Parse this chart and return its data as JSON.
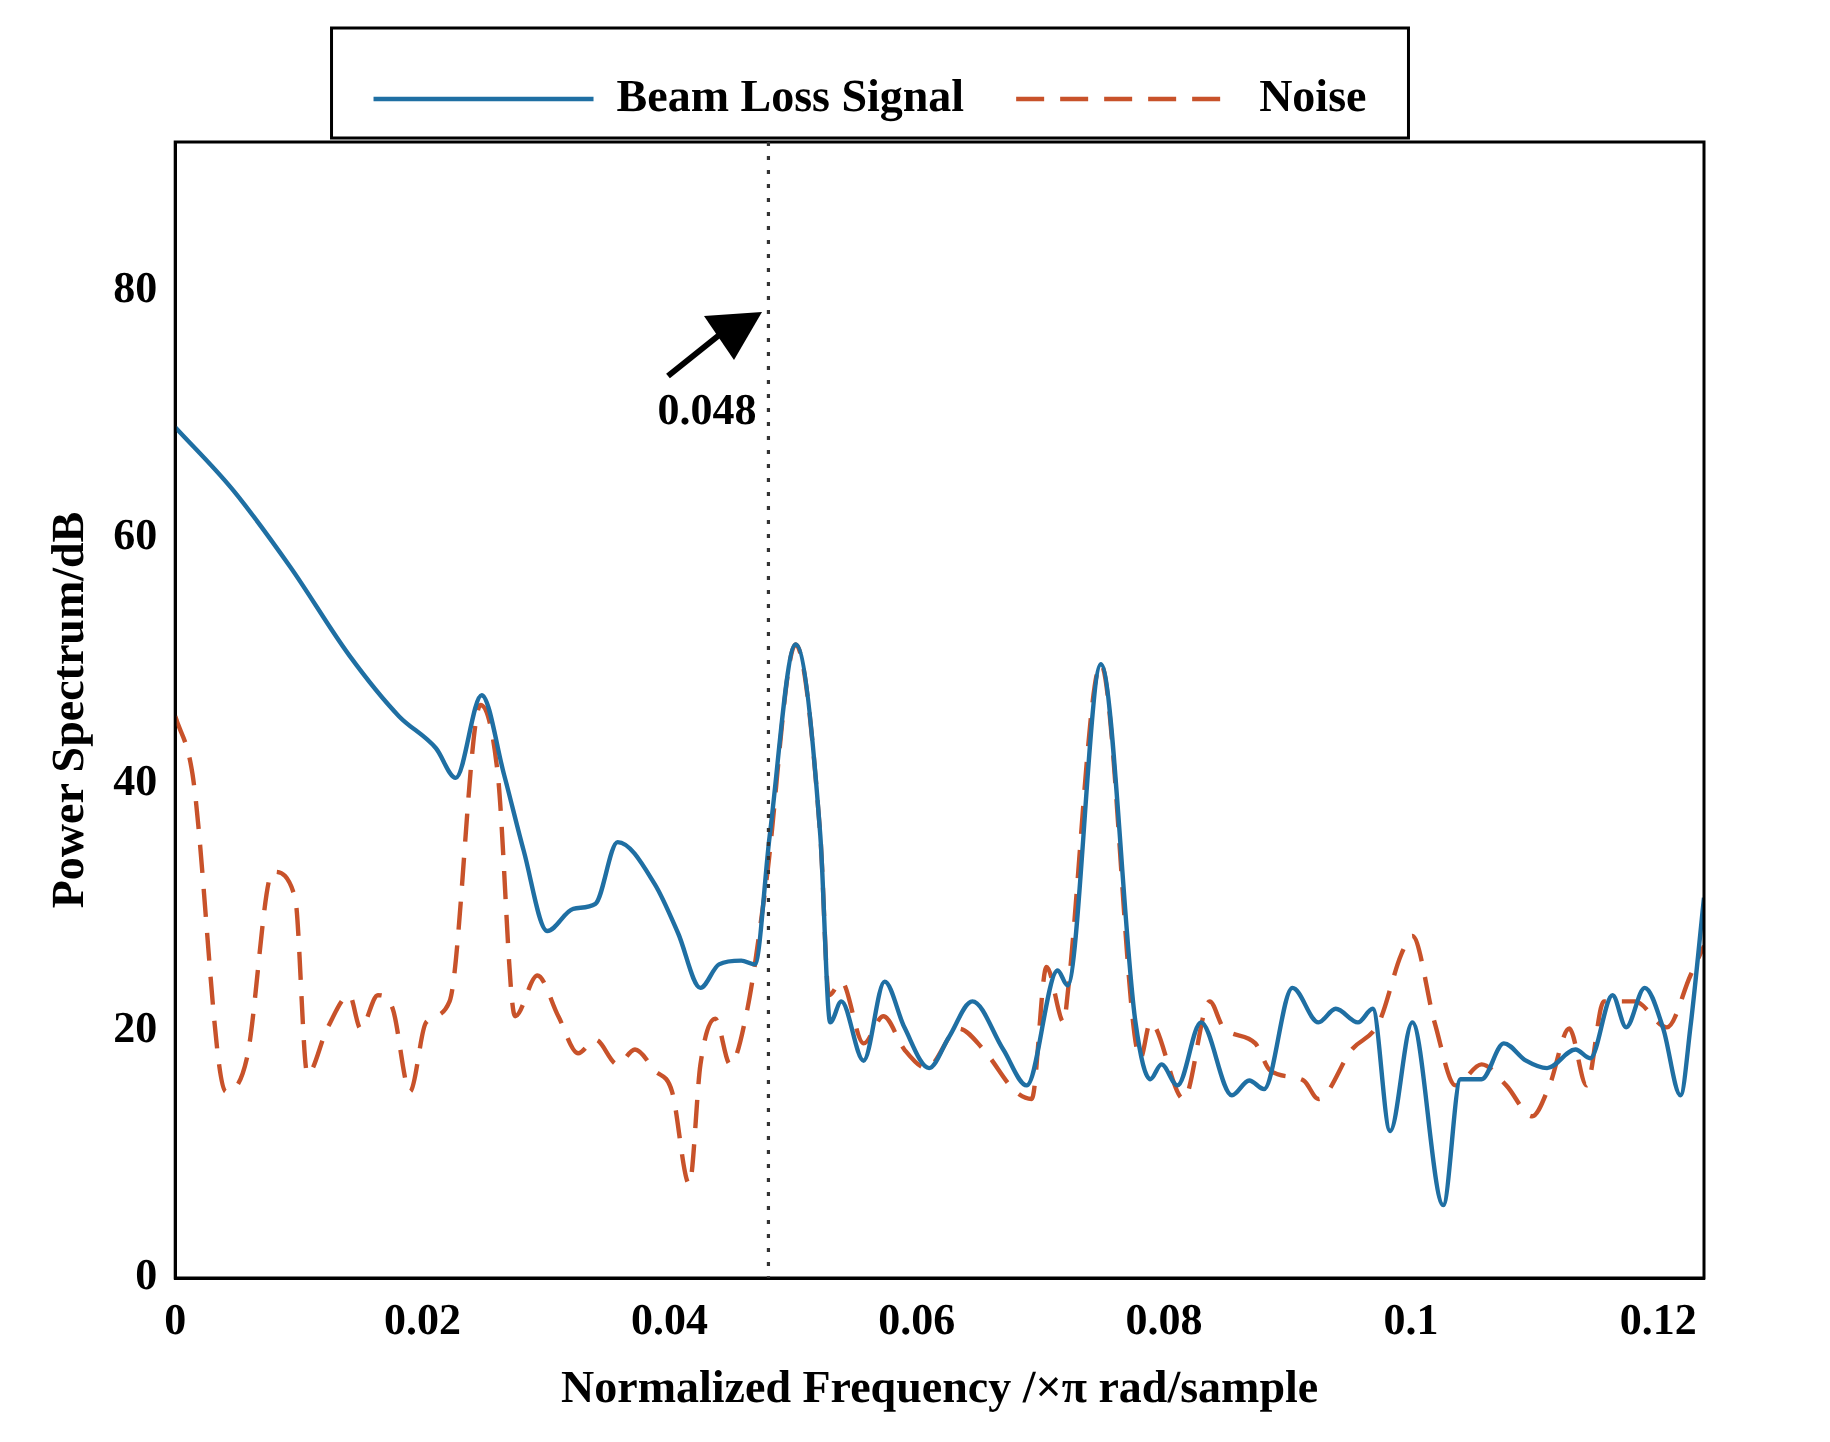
{
  "chart_data": {
    "type": "line",
    "xlabel": "Normalized Frequency /×π rad/sample",
    "ylabel": "Power Spectrum/dB",
    "xlim": [
      0,
      0.1237
    ],
    "xticks": [
      0,
      0.02,
      0.04,
      0.06,
      0.08,
      0.1,
      0.12
    ],
    "ylim": [
      0,
      92
    ],
    "yticks": [
      0,
      20,
      40,
      60,
      80
    ],
    "grid": false,
    "legend": "top",
    "marker": "none",
    "ref_lines": [
      {
        "axis": "x",
        "value": 0.048,
        "label": "0.048",
        "line_style": "dotted",
        "color": "#333333"
      }
    ],
    "series": [
      {
        "name": "Beam Loss Signal",
        "color": "#1f6fa3",
        "line_style": "solid",
        "x": [
          0,
          0.0046,
          0.0093,
          0.0141,
          0.0181,
          0.0211,
          0.0227,
          0.0248,
          0.0266,
          0.0282,
          0.0301,
          0.0322,
          0.034,
          0.0358,
          0.0388,
          0.0407,
          0.0425,
          0.044,
          0.0458,
          0.0469,
          0.0481,
          0.0502,
          0.0522,
          0.053,
          0.0539,
          0.0557,
          0.0574,
          0.059,
          0.061,
          0.0626,
          0.0645,
          0.067,
          0.0689,
          0.0714,
          0.0722,
          0.0749,
          0.0777,
          0.0789,
          0.0798,
          0.0811,
          0.083,
          0.0855,
          0.0869,
          0.0881,
          0.0904,
          0.0925,
          0.0939,
          0.0957,
          0.0969,
          0.0983,
          0.1001,
          0.1026,
          0.104,
          0.1057,
          0.1075,
          0.1093,
          0.111,
          0.1133,
          0.1145,
          0.1163,
          0.1174,
          0.1189,
          0.1204,
          0.1218,
          0.1226,
          0.1237
        ],
        "values": [
          68.9,
          63.9,
          57.6,
          50.4,
          45.5,
          42.9,
          40.5,
          47.2,
          40.8,
          34.6,
          28.1,
          29.9,
          30.3,
          35.3,
          31.9,
          27.9,
          23.5,
          25.4,
          25.7,
          25.4,
          35.8,
          51.3,
          35.8,
          20.7,
          22.4,
          17.6,
          24,
          20.3,
          17,
          19.5,
          22.4,
          18.5,
          15.6,
          24.9,
          23.7,
          49.7,
          20.7,
          16.1,
          17.3,
          15.6,
          20.7,
          14.8,
          16,
          15.3,
          23.5,
          20.7,
          21.8,
          20.7,
          21.8,
          11.9,
          20.7,
          5.9,
          16.1,
          16.1,
          19,
          17.6,
          17,
          18.5,
          17.8,
          22.9,
          20.3,
          23.5,
          20.2,
          14.8,
          20.3,
          30.8
        ]
      },
      {
        "name": "Noise",
        "color": "#c8522a",
        "line_style": "dashed",
        "x": [
          0,
          0.0014,
          0.0041,
          0.0058,
          0.0079,
          0.0097,
          0.0107,
          0.0123,
          0.0141,
          0.015,
          0.0164,
          0.0176,
          0.019,
          0.0203,
          0.0222,
          0.0247,
          0.0261,
          0.0275,
          0.0293,
          0.031,
          0.0326,
          0.034,
          0.0358,
          0.0372,
          0.0388,
          0.0402,
          0.0416,
          0.0425,
          0.0437,
          0.0449,
          0.0463,
          0.0478,
          0.0502,
          0.0522,
          0.0529,
          0.0539,
          0.0557,
          0.0573,
          0.059,
          0.0608,
          0.0634,
          0.0654,
          0.068,
          0.0693,
          0.0705,
          0.0719,
          0.0722,
          0.0749,
          0.0781,
          0.0789,
          0.0816,
          0.0837,
          0.0848,
          0.0874,
          0.0886,
          0.0913,
          0.0925,
          0.0952,
          0.0974,
          0.0992,
          0.1001,
          0.1019,
          0.1036,
          0.1057,
          0.1077,
          0.1098,
          0.1112,
          0.1128,
          0.1142,
          0.1156,
          0.1181,
          0.1207,
          0.1226,
          0.1237
        ],
        "values": [
          45.5,
          40.8,
          15.1,
          17.8,
          32.9,
          30.8,
          16.5,
          20.2,
          22.9,
          20.2,
          22.9,
          21.8,
          15.1,
          20.7,
          22.4,
          46.4,
          40.8,
          21.2,
          24.5,
          21.2,
          18.2,
          19.3,
          17.3,
          18.5,
          16.8,
          15.1,
          7.6,
          17.3,
          21,
          17.3,
          21.8,
          31.9,
          51.3,
          35.8,
          22.9,
          24,
          19,
          21.2,
          18.5,
          17,
          20.2,
          18.5,
          15.1,
          14.5,
          25.2,
          20.7,
          22.9,
          49.7,
          17.8,
          20.7,
          14.5,
          22.4,
          20.3,
          19,
          16.8,
          16,
          14.5,
          18.5,
          20.7,
          26.2,
          27.7,
          20.7,
          15.6,
          17.3,
          15.6,
          13.1,
          15.6,
          20.2,
          15.6,
          22.4,
          22.4,
          20.3,
          24.5,
          26.9
        ]
      }
    ]
  }
}
